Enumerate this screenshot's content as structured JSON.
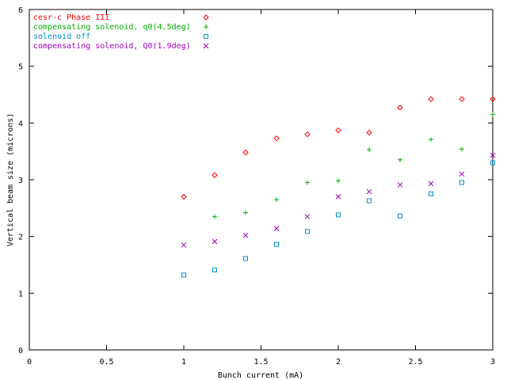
{
  "chart_data": {
    "type": "scatter",
    "title": "",
    "xlabel": "Bunch current (mA)",
    "ylabel": "Vertical beam size (microns)",
    "xlim": [
      0,
      3
    ],
    "ylim": [
      0,
      6
    ],
    "xticks": [
      "0",
      "0.5",
      "1",
      "1.5",
      "2",
      "2.5",
      "3"
    ],
    "yticks": [
      "0",
      "1",
      "2",
      "3",
      "4",
      "5",
      "6"
    ],
    "grid": false,
    "legend_position": "top-left",
    "series": [
      {
        "name": "cesr-c Phase III",
        "marker": "diamond",
        "color": "#ff0000",
        "x": [
          1.0,
          1.2,
          1.4,
          1.6,
          1.8,
          2.0,
          2.2,
          2.4,
          2.6,
          2.8,
          3.0
        ],
        "y": [
          2.7,
          3.08,
          3.48,
          3.73,
          3.8,
          3.87,
          3.83,
          4.27,
          4.42,
          4.42,
          4.42
        ]
      },
      {
        "name": "compensating solenoid, q0(4.5deg)",
        "marker": "plus",
        "color": "#00b000",
        "x": [
          1.2,
          1.4,
          1.6,
          1.8,
          2.0,
          2.2,
          2.4,
          2.6,
          2.8,
          3.0
        ],
        "y": [
          2.35,
          2.42,
          2.65,
          2.95,
          2.98,
          3.53,
          3.35,
          3.71,
          3.54,
          4.15
        ]
      },
      {
        "name": "solenoid off",
        "marker": "square",
        "color": "#0090d0",
        "x": [
          1.0,
          1.2,
          1.4,
          1.6,
          1.8,
          2.0,
          2.2,
          2.4,
          2.6,
          2.8,
          3.0
        ],
        "y": [
          1.32,
          1.41,
          1.61,
          1.86,
          2.09,
          2.38,
          2.63,
          2.36,
          2.75,
          2.95,
          3.3
        ]
      },
      {
        "name": "compensating solenoid, Q0(1.9deg)",
        "marker": "cross",
        "color": "#a000c0",
        "x": [
          1.0,
          1.2,
          1.4,
          1.6,
          1.8,
          2.0,
          2.2,
          2.4,
          2.6,
          2.8,
          3.0
        ],
        "y": [
          1.85,
          1.91,
          2.02,
          2.14,
          2.35,
          2.7,
          2.79,
          2.91,
          2.93,
          3.1,
          3.43
        ]
      }
    ]
  }
}
